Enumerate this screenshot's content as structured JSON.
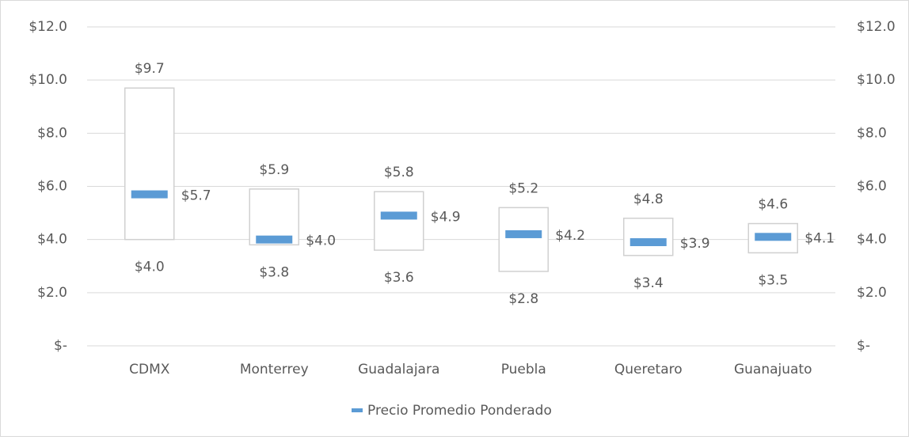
{
  "chart_data": {
    "type": "range",
    "categories": [
      "CDMX",
      "Monterrey",
      "Guadalajara",
      "Puebla",
      "Queretaro",
      "Guanajuato"
    ],
    "low": {
      "color": "#ffffff",
      "values": [
        4.0,
        3.8,
        3.6,
        2.8,
        3.4,
        3.5
      ],
      "value_labels": [
        "$4.0",
        "$3.8",
        "$3.6",
        "$2.8",
        "$3.4",
        "$3.5"
      ]
    },
    "high": {
      "color": "#ffffff",
      "values": [
        9.7,
        5.9,
        5.8,
        5.2,
        4.8,
        4.6
      ],
      "value_labels": [
        "$9.7",
        "$5.9",
        "$5.8",
        "$5.2",
        "$4.8",
        "$4.6"
      ]
    },
    "series": [
      {
        "name": "Precio Promedio Ponderado",
        "color": "#5b9bd5",
        "values": [
          5.7,
          4.0,
          4.9,
          4.2,
          3.9,
          4.1
        ],
        "value_labels": [
          "$5.7",
          "$4.0",
          "$4.9",
          "$4.2",
          "$3.9",
          "$4.1"
        ]
      }
    ],
    "ylim": [
      0,
      12
    ],
    "yticks": [
      {
        "value": 0,
        "label": "$-"
      },
      {
        "value": 2,
        "label": "$2.0"
      },
      {
        "value": 4,
        "label": "$4.0"
      },
      {
        "value": 6,
        "label": "$6.0"
      },
      {
        "value": 8,
        "label": "$8.0"
      },
      {
        "value": 10,
        "label": "$10.0"
      },
      {
        "value": 12,
        "label": "$12.0"
      }
    ],
    "y2lim": [
      0,
      12
    ],
    "y2ticks": [
      {
        "value": 0,
        "label": "$-"
      },
      {
        "value": 2,
        "label": "$2.0"
      },
      {
        "value": 4,
        "label": "$4.0"
      },
      {
        "value": 6,
        "label": "$6.0"
      },
      {
        "value": 8,
        "label": "$8.0"
      },
      {
        "value": 10,
        "label": "$10.0"
      },
      {
        "value": 12,
        "label": "$12.0"
      }
    ],
    "grid": true,
    "legend": "bottom"
  }
}
